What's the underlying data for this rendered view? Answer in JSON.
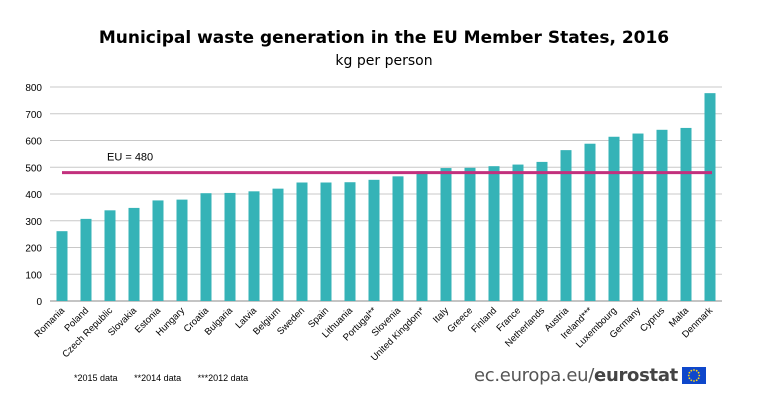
{
  "chart_data": {
    "type": "bar",
    "title": "Municipal  waste generation in the EU Member States, 2016",
    "subtitle": "kg per person",
    "categories": [
      "Romania",
      "Poland",
      "Czech Republic",
      "Slovakia",
      "Estonia",
      "Hungary",
      "Croatia",
      "Bulgaria",
      "Latvia",
      "Belgium",
      "Sweden",
      "Spain",
      "Lithuania",
      "Portugal**",
      "Slovenia",
      "United Kingdom*",
      "Italy",
      "Greece",
      "Finland",
      "France",
      "Netherlands",
      "Austria",
      "Ireland***",
      "Luxembourg",
      "Germany",
      "Cyprus",
      "Malta",
      "Denmark"
    ],
    "values": [
      261,
      307,
      339,
      348,
      376,
      379,
      403,
      404,
      410,
      420,
      443,
      443,
      444,
      453,
      466,
      485,
      497,
      498,
      504,
      510,
      520,
      564,
      588,
      614,
      626,
      640,
      647,
      777
    ],
    "ylim": [
      0,
      800
    ],
    "yticks": [
      0,
      100,
      200,
      300,
      400,
      500,
      600,
      700,
      800
    ],
    "bar_color": "#35b3b7",
    "grid": true,
    "reference_line": {
      "label": "EU = 480",
      "value": 480,
      "color": "#c2307d"
    }
  },
  "footnotes": [
    "*2015 data",
    "**2014 data",
    "***2012 data"
  ],
  "brand": {
    "text_plain": "ec.europa.eu/",
    "text_bold": "eurostat",
    "flag_color": "#0e47cb"
  }
}
